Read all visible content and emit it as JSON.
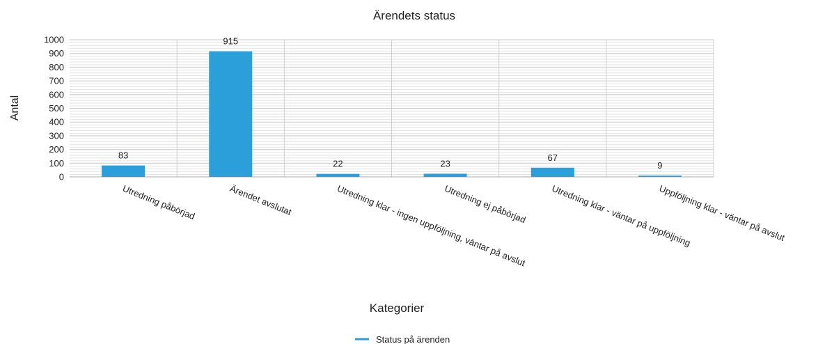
{
  "chart_data": {
    "type": "bar",
    "title": "Ärendets status",
    "x_label": "Kategorier",
    "y_label": "Antal",
    "categories": [
      "Utredning påbörjad",
      "Ärendet avslutat",
      "Utredning klar - ingen uppföljning, väntar på avslut",
      "Utredning ej påbörjad",
      "Utredning klar - väntar på uppföljning",
      "Uppföljning klar - väntar på avslut"
    ],
    "series": [
      {
        "name": "Status på ärenden",
        "color": "#2b9fd9",
        "values": [
          83,
          915,
          22,
          23,
          67,
          9
        ]
      }
    ],
    "ylim": [
      0,
      1000
    ],
    "yticks": [
      0,
      100,
      200,
      300,
      400,
      500,
      600,
      700,
      800,
      900,
      1000
    ],
    "grid": true,
    "legend": "bottom"
  }
}
